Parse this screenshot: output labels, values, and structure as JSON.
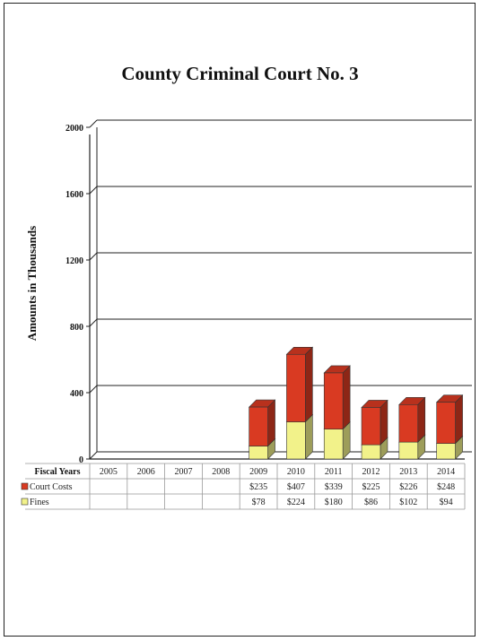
{
  "chart_data": {
    "type": "bar",
    "stacked": true,
    "title": "County Criminal Court No. 3",
    "ylabel": "Amounts in Thousands",
    "ylim": [
      0,
      2000
    ],
    "yticks": [
      0,
      400,
      800,
      1200,
      1600,
      2000
    ],
    "categories_header": "Fiscal Years",
    "categories": [
      "2005",
      "2006",
      "2007",
      "2008",
      "2009",
      "2010",
      "2011",
      "2012",
      "2013",
      "2014"
    ],
    "category_labels": [
      "2005",
      "2006",
      "2007",
      "2008",
      "2009",
      "2010",
      "2011",
      "2012",
      "2013",
      "2014"
    ],
    "series": [
      {
        "name": "Fines",
        "color": "#f2f28a",
        "values": [
          null,
          null,
          null,
          null,
          78,
          224,
          180,
          86,
          102,
          94
        ],
        "labels": [
          "",
          "",
          "",
          "",
          "$78",
          "$224",
          "$180",
          "$86",
          "$102",
          "$94"
        ]
      },
      {
        "name": "Court Costs",
        "color": "#d93a22",
        "values": [
          null,
          null,
          null,
          null,
          235,
          407,
          339,
          225,
          226,
          248
        ],
        "labels": [
          "",
          "",
          "",
          "",
          "$235",
          "$407",
          "$339",
          "$225",
          "$226",
          "$248"
        ]
      }
    ],
    "legend_placement": "data table below chart",
    "grid": true
  }
}
